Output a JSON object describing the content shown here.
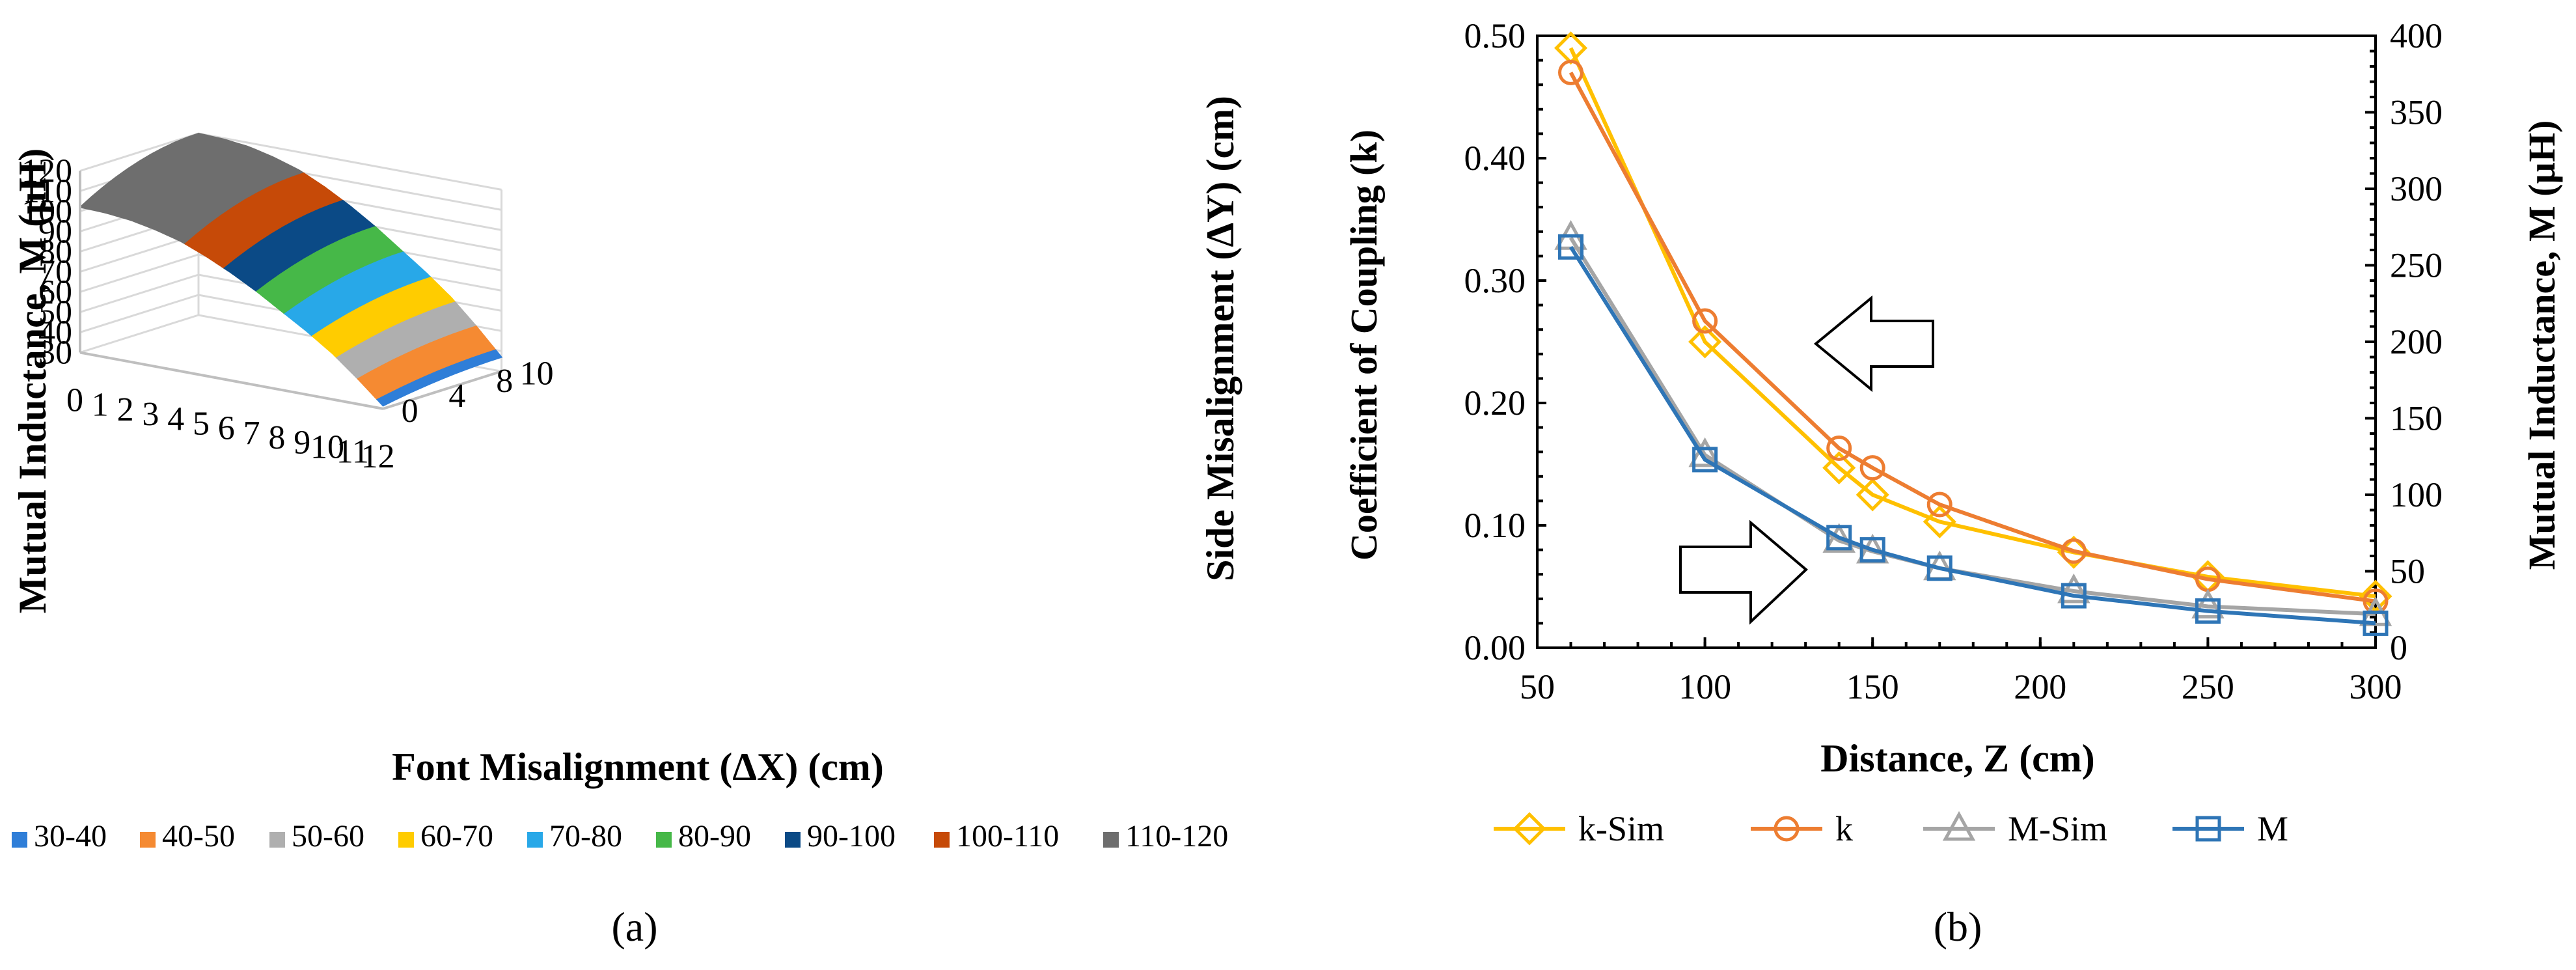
{
  "chart_data": [
    {
      "type": "surface3d",
      "panel_label": "(a)",
      "title": "",
      "zlabel": "Mutual Inductance, M (µH)",
      "xlabel": "Font Misalignment (ΔX) (cm)",
      "ylabel": "Side Misalignment (ΔY) (cm)",
      "z_ticks": [
        "30",
        "40",
        "50",
        "60",
        "70",
        "80",
        "90",
        "100",
        "110",
        "120"
      ],
      "x_ticks": [
        "0",
        "1",
        "2",
        "3",
        "4",
        "5",
        "6",
        "7",
        "8",
        "9",
        "10",
        "11",
        "12"
      ],
      "y_ticks": [
        "0",
        "4",
        "8",
        "10"
      ],
      "zlim": [
        30,
        120
      ],
      "xlim": [
        0,
        12
      ],
      "ylim": [
        0,
        10
      ],
      "surface_profile_dx": [
        0,
        1,
        2,
        3,
        4,
        5,
        6,
        7,
        8,
        9,
        10,
        11,
        12
      ],
      "surface_profile_m": [
        120,
        119.5,
        118,
        115,
        111,
        105,
        98,
        90,
        81,
        72,
        62,
        50,
        37
      ],
      "legend": [
        {
          "label": "30-40",
          "color": "#2F7ED8"
        },
        {
          "label": "40-50",
          "color": "#F58A32"
        },
        {
          "label": "50-60",
          "color": "#AFAFAF"
        },
        {
          "label": "60-70",
          "color": "#FFCC00"
        },
        {
          "label": "70-80",
          "color": "#28A8E8"
        },
        {
          "label": "80-90",
          "color": "#46B848"
        },
        {
          "label": "90-100",
          "color": "#0B4A86"
        },
        {
          "label": "100-110",
          "color": "#C64A08"
        },
        {
          "label": "110-120",
          "color": "#6E6E6E"
        }
      ]
    },
    {
      "type": "line",
      "panel_label": "(b)",
      "title": "",
      "xlabel": "Distance, Z (cm)",
      "ylabel": "Coefficient of Coupling (k)",
      "y2label": "Mutual Inductance, M (µH)",
      "xlim": [
        50,
        300
      ],
      "ylim": [
        0,
        0.5
      ],
      "y2lim": [
        0,
        400
      ],
      "x_ticks": [
        "50",
        "100",
        "150",
        "200",
        "250",
        "300"
      ],
      "y_ticks": [
        "0.00",
        "0.10",
        "0.20",
        "0.30",
        "0.40",
        "0.50"
      ],
      "y2_ticks": [
        "0",
        "50",
        "100",
        "150",
        "200",
        "250",
        "300",
        "350",
        "400"
      ],
      "series": [
        {
          "name": "k-Sim",
          "axis": "left",
          "marker": "diamond",
          "color": "#FFC000",
          "x": [
            60,
            100,
            140,
            150,
            170,
            210,
            250,
            300
          ],
          "y": [
            0.49,
            0.25,
            0.147,
            0.125,
            0.103,
            0.078,
            0.058,
            0.042
          ]
        },
        {
          "name": "k",
          "axis": "left",
          "marker": "circle",
          "color": "#ED7D31",
          "x": [
            60,
            100,
            140,
            150,
            170,
            210,
            250,
            300
          ],
          "y": [
            0.47,
            0.267,
            0.163,
            0.147,
            0.117,
            0.079,
            0.056,
            0.038
          ]
        },
        {
          "name": "M-Sim",
          "axis": "right",
          "marker": "triangle",
          "color": "#A5A5A5",
          "x": [
            60,
            100,
            140,
            150,
            170,
            210,
            250,
            300
          ],
          "y": [
            268,
            126,
            70,
            63,
            52,
            37,
            27,
            22
          ]
        },
        {
          "name": "M",
          "axis": "right",
          "marker": "square",
          "color": "#2E75B6",
          "x": [
            60,
            100,
            140,
            150,
            170,
            210,
            250,
            300
          ],
          "y": [
            262,
            123,
            72,
            64,
            52,
            34,
            24,
            16
          ]
        }
      ]
    }
  ]
}
